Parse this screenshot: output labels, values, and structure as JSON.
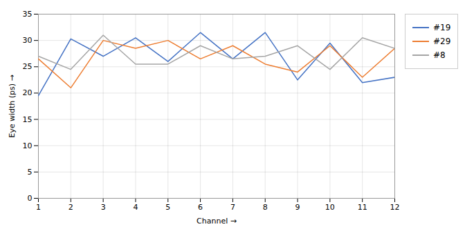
{
  "chart_data": {
    "type": "line",
    "x": [
      1,
      2,
      3,
      4,
      5,
      6,
      7,
      8,
      9,
      10,
      11,
      12
    ],
    "series": [
      {
        "name": "#19",
        "color": "#4472C4",
        "values": [
          19.5,
          30.3,
          27.0,
          30.5,
          26.0,
          31.5,
          26.5,
          31.5,
          22.5,
          29.5,
          22.0,
          23.0
        ]
      },
      {
        "name": "#29",
        "color": "#ED7D31",
        "values": [
          26.5,
          21.0,
          30.0,
          28.5,
          30.0,
          26.5,
          29.0,
          25.5,
          24.0,
          29.0,
          23.0,
          28.5
        ]
      },
      {
        "name": "#8",
        "color": "#A5A5A5",
        "values": [
          27.0,
          24.5,
          31.0,
          25.5,
          25.5,
          29.0,
          26.5,
          27.0,
          29.0,
          24.5,
          30.5,
          28.5
        ]
      }
    ],
    "xlabel": "Channel",
    "ylabel": "Eye width (ps)",
    "xlim": [
      1,
      12
    ],
    "ylim": [
      0,
      35
    ],
    "xticks": [
      1,
      2,
      3,
      4,
      5,
      6,
      7,
      8,
      9,
      10,
      11,
      12
    ],
    "yticks": [
      0,
      5,
      10,
      15,
      20,
      25,
      30,
      35
    ],
    "grid": true,
    "legend": "right"
  }
}
